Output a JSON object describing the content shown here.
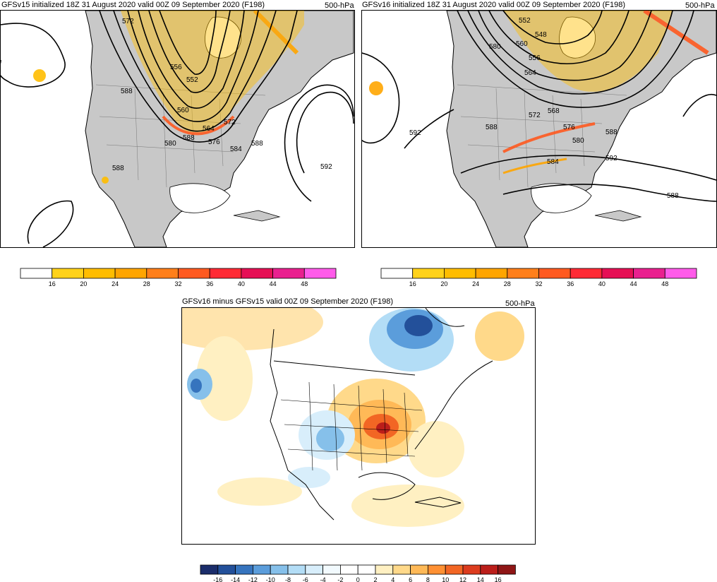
{
  "panels": {
    "top_left": {
      "title": "GFSv15 initialized 18Z 31 August 2020 valid 00Z 09 September 2020 (F198)",
      "level": "500-hPa",
      "contour_labels": [
        "572",
        "556",
        "552",
        "588",
        "560",
        "564",
        "572",
        "588",
        "576",
        "580",
        "584",
        "588",
        "588",
        "592"
      ]
    },
    "top_right": {
      "title": "GFSv16 initialized 18Z 31 August 2020 valid 00Z 09 September 2020 (F198)",
      "level": "500-hPa",
      "contour_labels": [
        "552",
        "548",
        "560",
        "580",
        "556",
        "564",
        "572",
        "568",
        "592",
        "588",
        "576",
        "580",
        "584",
        "588",
        "592",
        "588"
      ]
    },
    "bottom": {
      "title": "GFSv16 minus GFSv15 valid 00Z 09 September 2020 (F198)",
      "level": "500-hPa"
    }
  },
  "colorbars": {
    "wind": {
      "colors": [
        "#ffffff",
        "#ffd21a",
        "#ffbd00",
        "#ffa500",
        "#ff7f1a",
        "#ff5a20",
        "#ff2a35",
        "#e60f55",
        "#e9208f",
        "#ff5bea"
      ],
      "labels": [
        "16",
        "20",
        "24",
        "28",
        "32",
        "36",
        "40",
        "44",
        "48"
      ]
    },
    "diff": {
      "colors": [
        "#1b2d6b",
        "#23509a",
        "#3674be",
        "#5b9ddb",
        "#86c0ea",
        "#b3ddf6",
        "#d8eefb",
        "#f2fafe",
        "#ffffff",
        "#ffffff",
        "#fff0c2",
        "#ffd98a",
        "#ffb957",
        "#ff9033",
        "#f26624",
        "#dc3c1e",
        "#bb1e1a",
        "#8f1616"
      ],
      "labels": [
        "-16",
        "-14",
        "-12",
        "-10",
        "-8",
        "-6",
        "-4",
        "-2",
        "0",
        "2",
        "4",
        "6",
        "8",
        "10",
        "12",
        "14",
        "16"
      ]
    }
  }
}
